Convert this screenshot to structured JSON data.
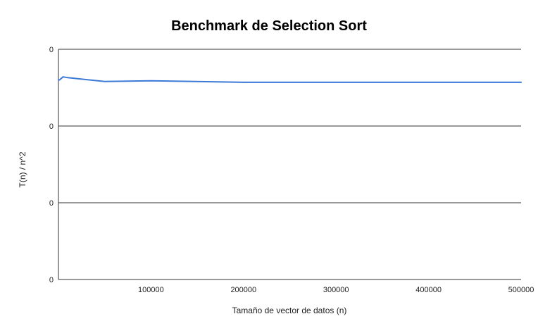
{
  "chart_data": {
    "type": "line",
    "title": "Benchmark de Selection Sort",
    "xlabel": "Tamaño de vector de datos (n)",
    "ylabel": "T(n) / n^2",
    "x_ticks": [
      "100000",
      "200000",
      "300000",
      "400000",
      "500000"
    ],
    "y_ticks": [
      "0",
      "0",
      "0",
      "0"
    ],
    "xlim": [
      0,
      500000
    ],
    "ylim": [
      0,
      3
    ],
    "grid": true,
    "series": [
      {
        "color": "#3c78d8",
        "x": [
          1000,
          5000,
          10000,
          50000,
          100000,
          200000,
          300000,
          400000,
          500000
        ],
        "y": [
          2.6,
          2.64,
          2.63,
          2.58,
          2.59,
          2.57,
          2.57,
          2.57,
          2.57
        ]
      }
    ]
  }
}
